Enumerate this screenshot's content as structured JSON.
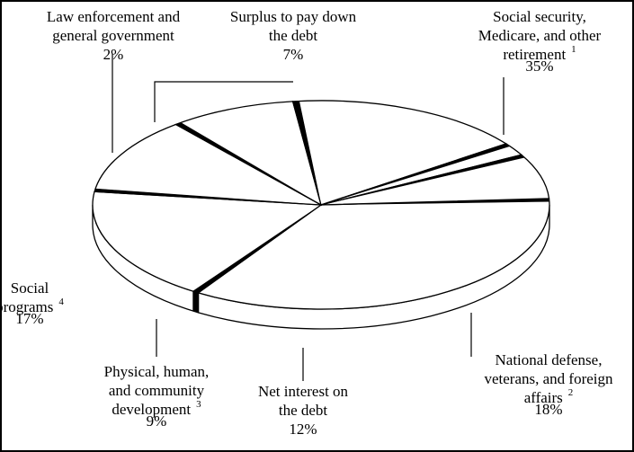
{
  "chart_data": {
    "type": "pie",
    "style": "3d-exploded-outline",
    "colors": {
      "fill": "#ffffff",
      "stroke": "#000000",
      "separator": "#000000"
    },
    "slices": [
      {
        "lines": [
          "Social security,",
          "Medicare, and other",
          "retirement"
        ],
        "sup": "1",
        "value": 35,
        "value_label": "35%"
      },
      {
        "lines": [
          "National defense,",
          "veterans, and foreign",
          "affairs"
        ],
        "sup": "2",
        "value": 18,
        "value_label": "18%"
      },
      {
        "lines": [
          "Net interest on",
          "the debt"
        ],
        "sup": "",
        "value": 12,
        "value_label": "12%"
      },
      {
        "lines": [
          "Physical, human,",
          "and community",
          "development"
        ],
        "sup": "3",
        "value": 9,
        "value_label": "9%"
      },
      {
        "lines": [
          "Social",
          "programs"
        ],
        "sup": "4",
        "value": 17,
        "value_label": "17%"
      },
      {
        "lines": [
          "Law enforcement and",
          "general government"
        ],
        "sup": "",
        "value": 2,
        "value_label": "2%"
      },
      {
        "lines": [
          "Surplus to pay down",
          "the debt"
        ],
        "sup": "",
        "value": 7,
        "value_label": "7%"
      }
    ]
  }
}
